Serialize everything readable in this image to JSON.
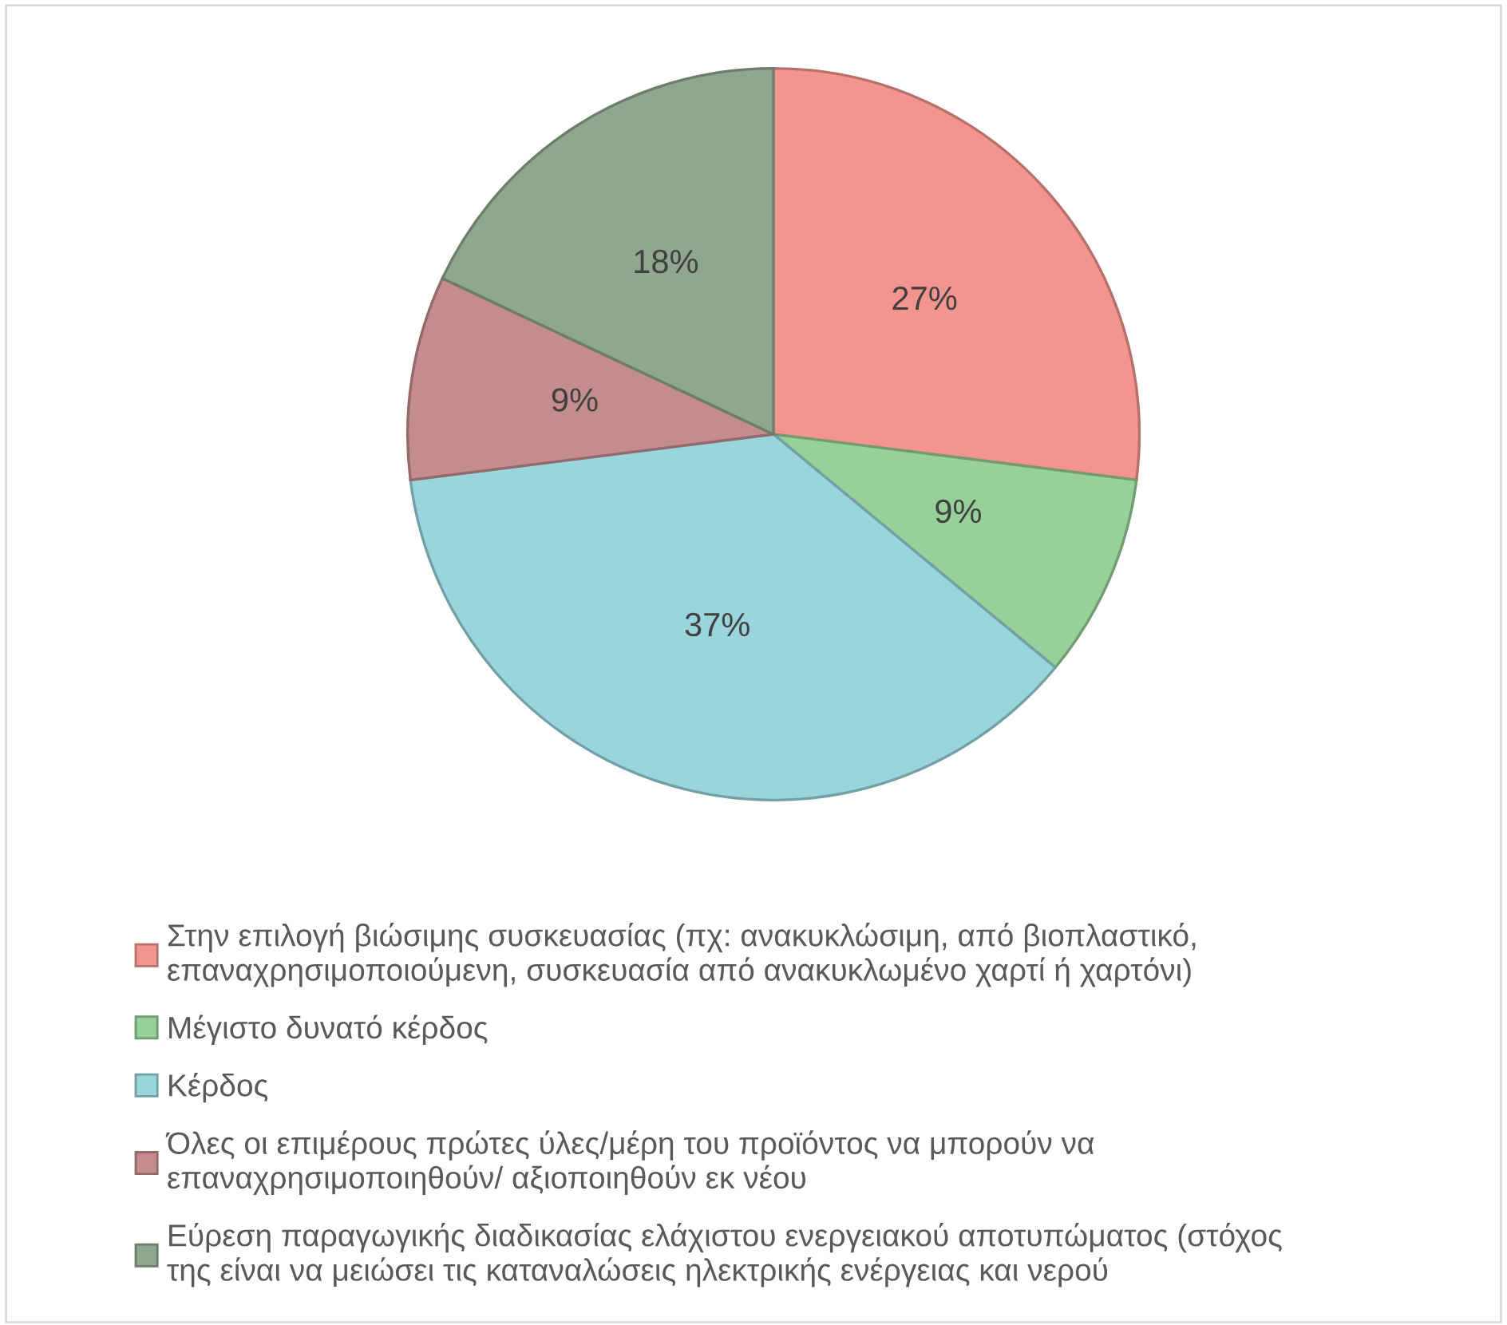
{
  "chart_data": {
    "type": "pie",
    "categories": [
      "Στην επιλογή βιώσιμης συσκευασίας (πχ: ανακυκλώσιμη, από βιοπλαστικό,\nεπαναχρησιμοποιούμενη, συσκευασία από ανακυκλωμένο χαρτί ή χαρτόνι)",
      "Μέγιστο δυνατό κέρδος",
      "Κέρδος",
      "Όλες οι επιμέρους πρώτες ύλες/μέρη του προϊόντος να μπορούν να\nεπαναχρησιμοποιηθούν/ αξιοποιηθούν εκ νέου",
      "Εύρεση παραγωγικής διαδικασίας ελάχιστου ενεργειακού αποτυπώματος (στόχος\nτης είναι να μειώσει τις καταναλώσεις ηλεκτρικής ενέργειας και νερού"
    ],
    "values": [
      27,
      9,
      37,
      9,
      18
    ],
    "value_labels": [
      "27%",
      "9%",
      "37%",
      "9%",
      "18%"
    ],
    "colors": [
      "#f3958e",
      "#97d098",
      "#98d5dc",
      "#c48c8c",
      "#8fa68f"
    ],
    "legend": "bottom"
  }
}
